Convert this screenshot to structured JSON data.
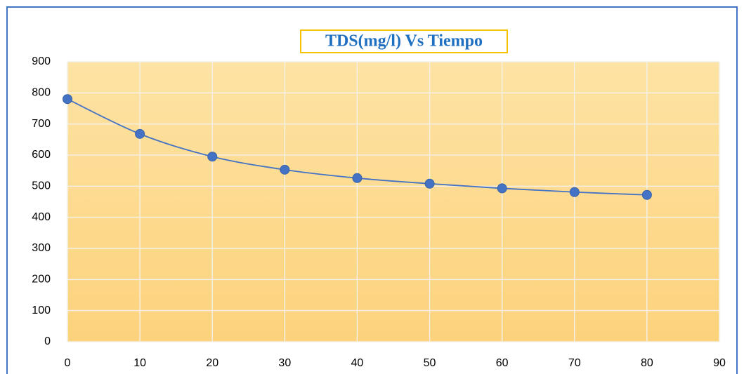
{
  "chart_data": {
    "type": "line",
    "title": "TDS(mg/l) Vs Tiempo",
    "x": [
      0,
      10,
      20,
      30,
      40,
      50,
      60,
      70,
      80
    ],
    "series": [
      {
        "name": "TDS",
        "color": "#4472c4",
        "values": [
          780,
          668,
          595,
          553,
          526,
          508,
          493,
          481,
          472
        ]
      }
    ],
    "xlim": [
      0,
      90
    ],
    "xticks": [
      0,
      10,
      20,
      30,
      40,
      50,
      60,
      70,
      80,
      90
    ],
    "ylim": [
      0,
      900
    ],
    "yticks": [
      0,
      100,
      200,
      300,
      400,
      500,
      600,
      700,
      800,
      900
    ],
    "grid": true
  }
}
